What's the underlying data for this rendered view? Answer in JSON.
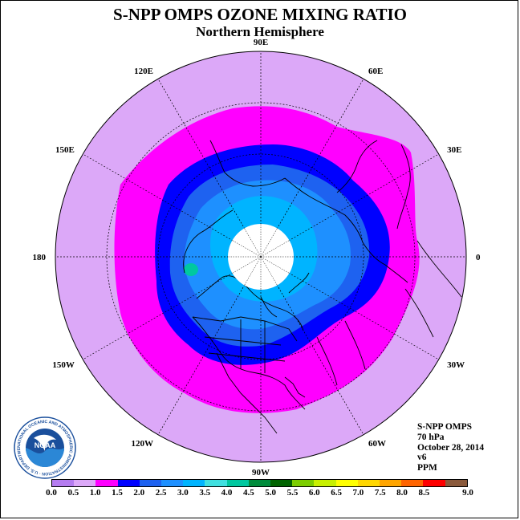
{
  "title": "S-NPP OMPS OZONE MIXING RATIO",
  "subtitle": "Northern Hemisphere",
  "info": {
    "instrument": "S-NPP OMPS",
    "level": "70 hPa",
    "date": "October 28, 2014",
    "version": "v6",
    "units": "PPM"
  },
  "longitude_labels": [
    "90E",
    "60E",
    "30E",
    "0",
    "30W",
    "60W",
    "90W",
    "120W",
    "150W",
    "180",
    "150E",
    "120E"
  ],
  "colorbar": {
    "ticks": [
      "0.0",
      "0.5",
      "1.0",
      "1.5",
      "2.0",
      "2.5",
      "3.0",
      "3.5",
      "4.0",
      "4.5",
      "5.0",
      "5.5",
      "6.0",
      "6.5",
      "7.0",
      "7.5",
      "8.0",
      "8.5",
      "9.0"
    ],
    "colors": [
      "#b57cf0",
      "#dca8f8",
      "#ff00ff",
      "#0000ff",
      "#1e62f0",
      "#1e90ff",
      "#00b4ff",
      "#40e0e0",
      "#00c8a0",
      "#008c3c",
      "#006400",
      "#7ccd00",
      "#c8f000",
      "#ffff00",
      "#ffd700",
      "#ffa500",
      "#ff6400",
      "#ff0000",
      "#8b5a3c"
    ]
  },
  "logo": {
    "text": "NOAA",
    "ring_text": "NATIONAL OCEANIC AND ATMOSPHERIC ADMINISTRATION · U.S. DEPARTMENT OF COMMERCE"
  },
  "colors": {
    "outer_band": "#dca8f8",
    "magenta_band": "#ff00ff",
    "blue_band": "#0000ff",
    "inner_blue": "#1e62f0",
    "light_blue": "#1e90ff",
    "cyan": "#00b4ff",
    "no_data": "#ffffff"
  }
}
